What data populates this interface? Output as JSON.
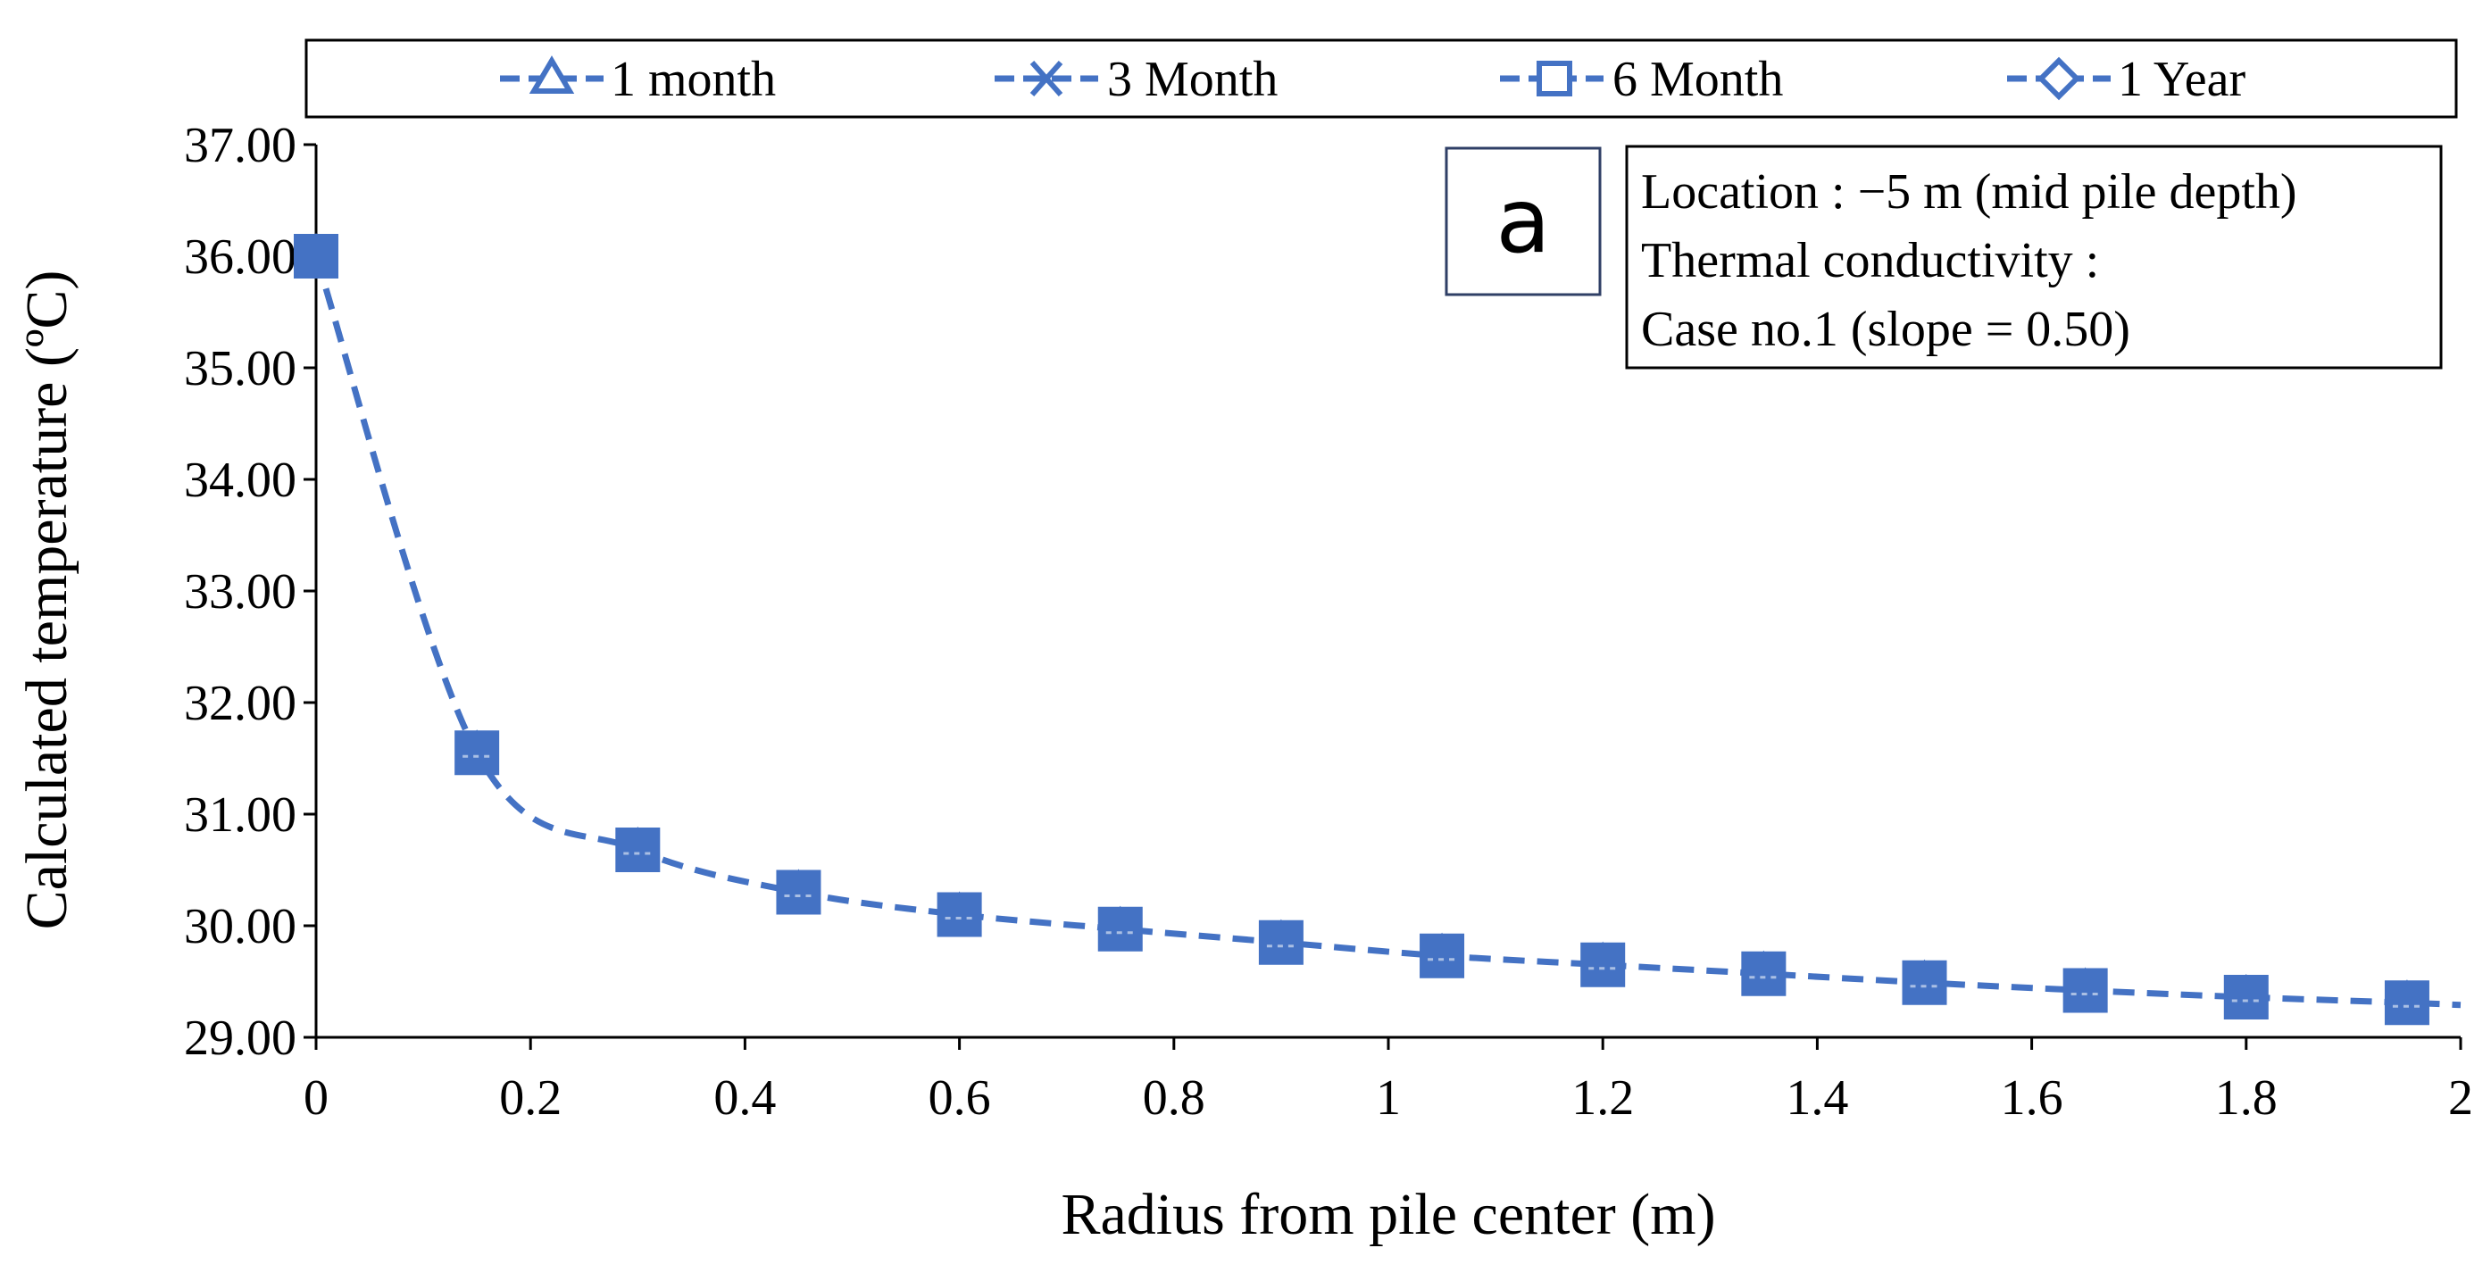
{
  "colors": {
    "series": "#4472c4",
    "axis": "#000000",
    "background": "#ffffff"
  },
  "legend": {
    "items": [
      {
        "label": "1 month",
        "marker": "triangle-icon"
      },
      {
        "label": "3 Month",
        "marker": "cross-icon"
      },
      {
        "label": "6 Month",
        "marker": "square-icon"
      },
      {
        "label": "1 Year",
        "marker": "diamond-icon"
      }
    ]
  },
  "panel_label": "a",
  "info_box": {
    "lines": [
      "Location : −5 m (mid pile depth)",
      "Thermal conductivity :",
      "Case no.1 (slope = 0.50)"
    ]
  },
  "chart_data": {
    "type": "line",
    "title": "",
    "xlabel": "Radius from pile center (m)",
    "ylabel": "Calculated temperature (ºC)",
    "xlim": [
      0,
      2
    ],
    "ylim": [
      29,
      37
    ],
    "x_ticks": [
      "0",
      "0.2",
      "0.4",
      "0.6",
      "0.8",
      "1",
      "1.2",
      "1.4",
      "1.6",
      "1.8",
      "2"
    ],
    "y_ticks": [
      "29.00",
      "30.00",
      "31.00",
      "32.00",
      "33.00",
      "34.00",
      "35.00",
      "36.00",
      "37.00"
    ],
    "line_curve": {
      "x": [
        0,
        0.15,
        0.3,
        0.45,
        0.6,
        0.75,
        0.9,
        1.05,
        1.2,
        1.35,
        1.5,
        1.65,
        1.8,
        1.95,
        2.0
      ],
      "y": [
        36.0,
        31.55,
        30.68,
        30.3,
        30.1,
        29.97,
        29.85,
        29.73,
        29.65,
        29.57,
        29.49,
        29.42,
        29.36,
        29.31,
        29.29
      ]
    },
    "series": [
      {
        "name": "1 month",
        "marker": "triangle",
        "x": [
          0,
          0.15,
          0.3,
          0.45,
          0.6,
          0.75,
          0.9,
          1.05,
          1.2,
          1.35,
          1.5,
          1.65,
          1.8,
          1.95
        ],
        "y": [
          36.0,
          31.55,
          30.68,
          30.3,
          30.1,
          29.97,
          29.85,
          29.73,
          29.65,
          29.57,
          29.49,
          29.42,
          29.36,
          29.31
        ]
      },
      {
        "name": "3 Month",
        "marker": "cross",
        "x": [
          0,
          0.15,
          0.3,
          0.45,
          0.6,
          0.75,
          0.9,
          1.05,
          1.2,
          1.35,
          1.5,
          1.65,
          1.8,
          1.95
        ],
        "y": [
          36.0,
          31.55,
          30.68,
          30.3,
          30.1,
          29.97,
          29.85,
          29.73,
          29.65,
          29.57,
          29.49,
          29.42,
          29.36,
          29.31
        ]
      },
      {
        "name": "6 Month",
        "marker": "square",
        "x": [
          0,
          0.15,
          0.3,
          0.45,
          0.6,
          0.75,
          0.9,
          1.05,
          1.2,
          1.35,
          1.5,
          1.65,
          1.8,
          1.95
        ],
        "y": [
          36.0,
          31.55,
          30.68,
          30.3,
          30.1,
          29.97,
          29.85,
          29.73,
          29.65,
          29.57,
          29.49,
          29.42,
          29.36,
          29.31
        ]
      },
      {
        "name": "1 Year",
        "marker": "diamond",
        "x": [
          0,
          0.15,
          0.3,
          0.45,
          0.6,
          0.75,
          0.9,
          1.05,
          1.2,
          1.35,
          1.5,
          1.65,
          1.8,
          1.95
        ],
        "y": [
          36.0,
          31.55,
          30.68,
          30.3,
          30.1,
          29.97,
          29.85,
          29.73,
          29.65,
          29.57,
          29.49,
          29.42,
          29.36,
          29.31
        ]
      }
    ],
    "legend_position": "top"
  }
}
